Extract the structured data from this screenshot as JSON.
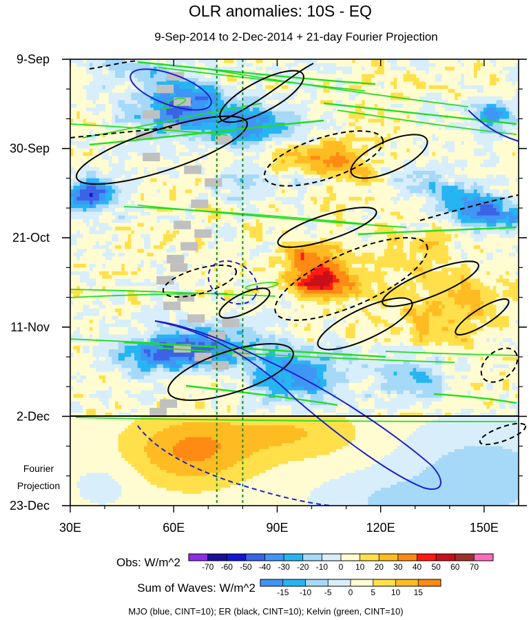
{
  "chart_data": {
    "type": "heatmap",
    "title": "OLR anomalies: 10S - EQ",
    "subtitle": "9-Sep-2014 to 2-Dec-2014 + 21-day Fourier Projection",
    "x_range": [
      30,
      160
    ],
    "x_ticks": [
      {
        "value": 30,
        "label": "30E"
      },
      {
        "value": 60,
        "label": "60E"
      },
      {
        "value": 90,
        "label": "90E"
      },
      {
        "value": 120,
        "label": "120E"
      },
      {
        "value": 150,
        "label": "150E"
      }
    ],
    "y_range_days": [
      0,
      105
    ],
    "y_ticks": [
      {
        "day": 0,
        "label": "9-Sep"
      },
      {
        "day": 21,
        "label": "30-Sep"
      },
      {
        "day": 42,
        "label": "21-Oct"
      },
      {
        "day": 63,
        "label": "11-Nov"
      },
      {
        "day": 84,
        "label": "2-Dec"
      },
      {
        "day": 105,
        "label": "23-Dec"
      }
    ],
    "projection_label": [
      "Fourier",
      "Projection"
    ],
    "observation_end_day": 84,
    "reference_longitudes": [
      72.5,
      80
    ],
    "obs_colorbar": {
      "label": "Obs: W/m^2",
      "levels": [
        -70,
        -60,
        -50,
        -40,
        -30,
        -20,
        -10,
        0,
        10,
        20,
        30,
        40,
        50,
        60,
        70
      ],
      "colors": [
        "#8f2ce6",
        "#1a0f99",
        "#1515d4",
        "#3b63e6",
        "#3f96f5",
        "#26b5f2",
        "#a6d8f7",
        "#d8eefa",
        "#fffcd2",
        "#ffe04a",
        "#ffbb22",
        "#ff8a14",
        "#ff1a12",
        "#c8101a",
        "#a0302c",
        "#ff6dbd"
      ]
    },
    "waves_colorbar": {
      "label": "Sum of Waves: W/m^2",
      "levels": [
        -15,
        -10,
        -5,
        0,
        5,
        10,
        15
      ],
      "colors": [
        "#3f96f5",
        "#26b5f2",
        "#a6d8f7",
        "#d8eefa",
        "#fffcd2",
        "#ffe04a",
        "#ffbb22",
        "#ff8a14"
      ]
    },
    "contours": [
      {
        "name": "MJO",
        "color": "#1a20cc",
        "cint": 10
      },
      {
        "name": "ER",
        "color": "#000000",
        "cint": 10
      },
      {
        "name": "Kelvin",
        "color": "#22dd22",
        "cint": 10
      }
    ],
    "caption": "MJO (blue, CINT=10); ER (black, CINT=10); Kelvin (green, CINT=10)"
  }
}
